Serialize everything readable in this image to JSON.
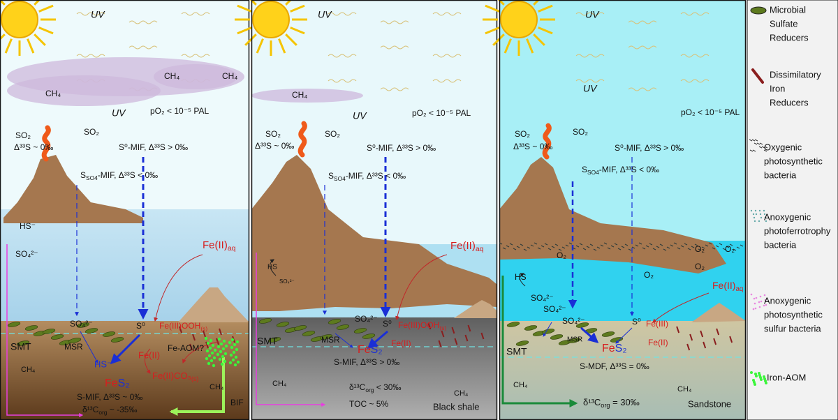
{
  "panels": [
    {
      "labels": [
        "UV",
        "UV",
        "CH₄",
        "CH₄",
        "CH₄",
        "pO₂ < 10⁻⁵ PAL",
        "SO₂",
        "Δ³³S ~ 0‰",
        "SO₂",
        "S⁰-MIF, Δ³³S > 0‰",
        [
          "S",
          {
            "sub": "SO4"
          },
          "-MIF, Δ³³S < 0‰"
        ],
        "HS⁻",
        "SO₄²⁻",
        [
          "Fe(II)",
          {
            "sub": "aq"
          }
        ],
        "SO₄²⁻",
        "S⁰",
        [
          "Fe(III)OOH",
          {
            "sub": "(s)"
          }
        ],
        "SMT",
        "MSR",
        "Fe-AOM?",
        "Fe(II)",
        "HS⁻",
        [
          "Fe(II)CO₃",
          {
            "sub": "(s)"
          }
        ],
        "CH₄",
        "CH₄",
        [
          "Fe",
          "S₂"
        ],
        "S-MIF, Δ³³S ~ 0‰",
        [
          "δ¹³C",
          {
            "sub": "org"
          },
          " ~ -35‰"
        ],
        "BIF"
      ]
    },
    {
      "labels": [
        "UV",
        "UV",
        "CH₄",
        "pO₂ < 10⁻⁵ PAL",
        "SO₂",
        "Δ³³S ~ 0‰",
        "SO₂",
        "S⁰-MIF, Δ³³S > 0‰",
        [
          "S",
          {
            "sub": "SO4"
          },
          "-MIF, Δ³³S < 0‰"
        ],
        "HS",
        "SO₄²⁻",
        [
          "Fe(II)",
          {
            "sub": "aq"
          }
        ],
        "SO₄²⁻",
        "S⁰",
        [
          "Fe(III)OOH",
          {
            "sub": "(s)"
          }
        ],
        "SMT",
        "MSR",
        [
          "Fe",
          "S₂"
        ],
        "Fe(II)",
        "S-MIF, Δ³³S > 0‰",
        "CH₄",
        [
          "δ¹³C",
          {
            "sub": "org"
          },
          " < 30‰"
        ],
        "CH₄",
        "TOC ~ 5%",
        "Black shale"
      ]
    },
    {
      "labels": [
        "UV",
        "UV",
        "pO₂ < 10⁻⁵ PAL",
        "SO₂",
        "Δ³³S ~ 0‰",
        "SO₂",
        "S⁰-MIF, Δ³³S > 0‰",
        [
          "S",
          {
            "sub": "SO4"
          },
          "-MIF, Δ³³S < 0‰"
        ],
        "O₂",
        "O₂",
        "O₂",
        "O₂",
        "O₂",
        "HS",
        "SO₄²⁻",
        "SO₄²⁻",
        "SO₄²⁻",
        "S⁰",
        [
          "Fe(II)",
          {
            "sub": "aq"
          }
        ],
        "Fe(III)",
        "SMT",
        "MSR",
        [
          "Fe",
          "S₂"
        ],
        "Fe(II)",
        "S-MDF, Δ³³S = 0‰",
        "CH₄",
        "CH₄",
        [
          "δ¹³C",
          {
            "sub": "org"
          },
          " = 30‰"
        ],
        "Sandstone"
      ]
    }
  ],
  "legend": [
    {
      "lines": [
        "Microbial",
        "Sulfate",
        "Reducers"
      ]
    },
    {
      "lines": [
        "Dissimilatory",
        "Iron",
        "Reducers"
      ]
    },
    {
      "lines": [
        "Oxygenic",
        "photosynthetic",
        "bacteria"
      ]
    },
    {
      "lines": [
        "Anoxygenic",
        "photoferrotrophy",
        "bacteria"
      ]
    },
    {
      "lines": [
        "Anoxygenic",
        "photosynthetic",
        "sulfur bacteria"
      ]
    },
    {
      "lines": [
        "Iron-AOM"
      ]
    }
  ]
}
